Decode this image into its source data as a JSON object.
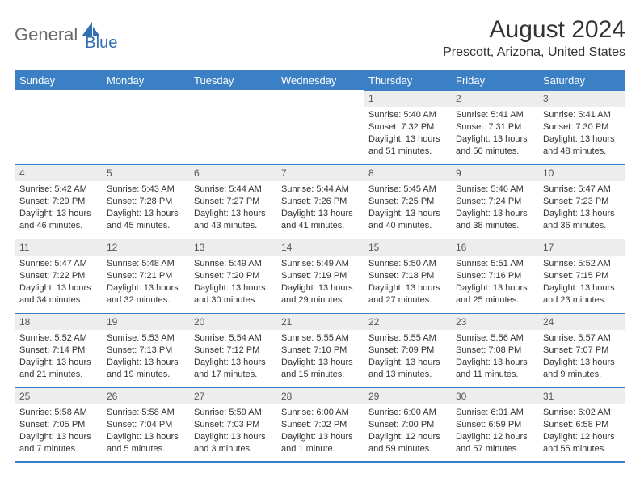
{
  "brand": {
    "part1": "General",
    "part2": "Blue"
  },
  "title": "August 2024",
  "location": "Prescott, Arizona, United States",
  "colors": {
    "header_bg": "#3b7fc4",
    "daynum_bg": "#ededed",
    "text": "#333333",
    "logo_gray": "#6b6b6b",
    "logo_blue": "#2f6fb2"
  },
  "weekdays": [
    "Sunday",
    "Monday",
    "Tuesday",
    "Wednesday",
    "Thursday",
    "Friday",
    "Saturday"
  ],
  "first_weekday_index": 4,
  "days": [
    {
      "n": 1,
      "sr": "5:40 AM",
      "ss": "7:32 PM",
      "dl": "13 hours and 51 minutes."
    },
    {
      "n": 2,
      "sr": "5:41 AM",
      "ss": "7:31 PM",
      "dl": "13 hours and 50 minutes."
    },
    {
      "n": 3,
      "sr": "5:41 AM",
      "ss": "7:30 PM",
      "dl": "13 hours and 48 minutes."
    },
    {
      "n": 4,
      "sr": "5:42 AM",
      "ss": "7:29 PM",
      "dl": "13 hours and 46 minutes."
    },
    {
      "n": 5,
      "sr": "5:43 AM",
      "ss": "7:28 PM",
      "dl": "13 hours and 45 minutes."
    },
    {
      "n": 6,
      "sr": "5:44 AM",
      "ss": "7:27 PM",
      "dl": "13 hours and 43 minutes."
    },
    {
      "n": 7,
      "sr": "5:44 AM",
      "ss": "7:26 PM",
      "dl": "13 hours and 41 minutes."
    },
    {
      "n": 8,
      "sr": "5:45 AM",
      "ss": "7:25 PM",
      "dl": "13 hours and 40 minutes."
    },
    {
      "n": 9,
      "sr": "5:46 AM",
      "ss": "7:24 PM",
      "dl": "13 hours and 38 minutes."
    },
    {
      "n": 10,
      "sr": "5:47 AM",
      "ss": "7:23 PM",
      "dl": "13 hours and 36 minutes."
    },
    {
      "n": 11,
      "sr": "5:47 AM",
      "ss": "7:22 PM",
      "dl": "13 hours and 34 minutes."
    },
    {
      "n": 12,
      "sr": "5:48 AM",
      "ss": "7:21 PM",
      "dl": "13 hours and 32 minutes."
    },
    {
      "n": 13,
      "sr": "5:49 AM",
      "ss": "7:20 PM",
      "dl": "13 hours and 30 minutes."
    },
    {
      "n": 14,
      "sr": "5:49 AM",
      "ss": "7:19 PM",
      "dl": "13 hours and 29 minutes."
    },
    {
      "n": 15,
      "sr": "5:50 AM",
      "ss": "7:18 PM",
      "dl": "13 hours and 27 minutes."
    },
    {
      "n": 16,
      "sr": "5:51 AM",
      "ss": "7:16 PM",
      "dl": "13 hours and 25 minutes."
    },
    {
      "n": 17,
      "sr": "5:52 AM",
      "ss": "7:15 PM",
      "dl": "13 hours and 23 minutes."
    },
    {
      "n": 18,
      "sr": "5:52 AM",
      "ss": "7:14 PM",
      "dl": "13 hours and 21 minutes."
    },
    {
      "n": 19,
      "sr": "5:53 AM",
      "ss": "7:13 PM",
      "dl": "13 hours and 19 minutes."
    },
    {
      "n": 20,
      "sr": "5:54 AM",
      "ss": "7:12 PM",
      "dl": "13 hours and 17 minutes."
    },
    {
      "n": 21,
      "sr": "5:55 AM",
      "ss": "7:10 PM",
      "dl": "13 hours and 15 minutes."
    },
    {
      "n": 22,
      "sr": "5:55 AM",
      "ss": "7:09 PM",
      "dl": "13 hours and 13 minutes."
    },
    {
      "n": 23,
      "sr": "5:56 AM",
      "ss": "7:08 PM",
      "dl": "13 hours and 11 minutes."
    },
    {
      "n": 24,
      "sr": "5:57 AM",
      "ss": "7:07 PM",
      "dl": "13 hours and 9 minutes."
    },
    {
      "n": 25,
      "sr": "5:58 AM",
      "ss": "7:05 PM",
      "dl": "13 hours and 7 minutes."
    },
    {
      "n": 26,
      "sr": "5:58 AM",
      "ss": "7:04 PM",
      "dl": "13 hours and 5 minutes."
    },
    {
      "n": 27,
      "sr": "5:59 AM",
      "ss": "7:03 PM",
      "dl": "13 hours and 3 minutes."
    },
    {
      "n": 28,
      "sr": "6:00 AM",
      "ss": "7:02 PM",
      "dl": "13 hours and 1 minute."
    },
    {
      "n": 29,
      "sr": "6:00 AM",
      "ss": "7:00 PM",
      "dl": "12 hours and 59 minutes."
    },
    {
      "n": 30,
      "sr": "6:01 AM",
      "ss": "6:59 PM",
      "dl": "12 hours and 57 minutes."
    },
    {
      "n": 31,
      "sr": "6:02 AM",
      "ss": "6:58 PM",
      "dl": "12 hours and 55 minutes."
    }
  ],
  "labels": {
    "sunrise": "Sunrise:",
    "sunset": "Sunset:",
    "daylight": "Daylight:"
  }
}
